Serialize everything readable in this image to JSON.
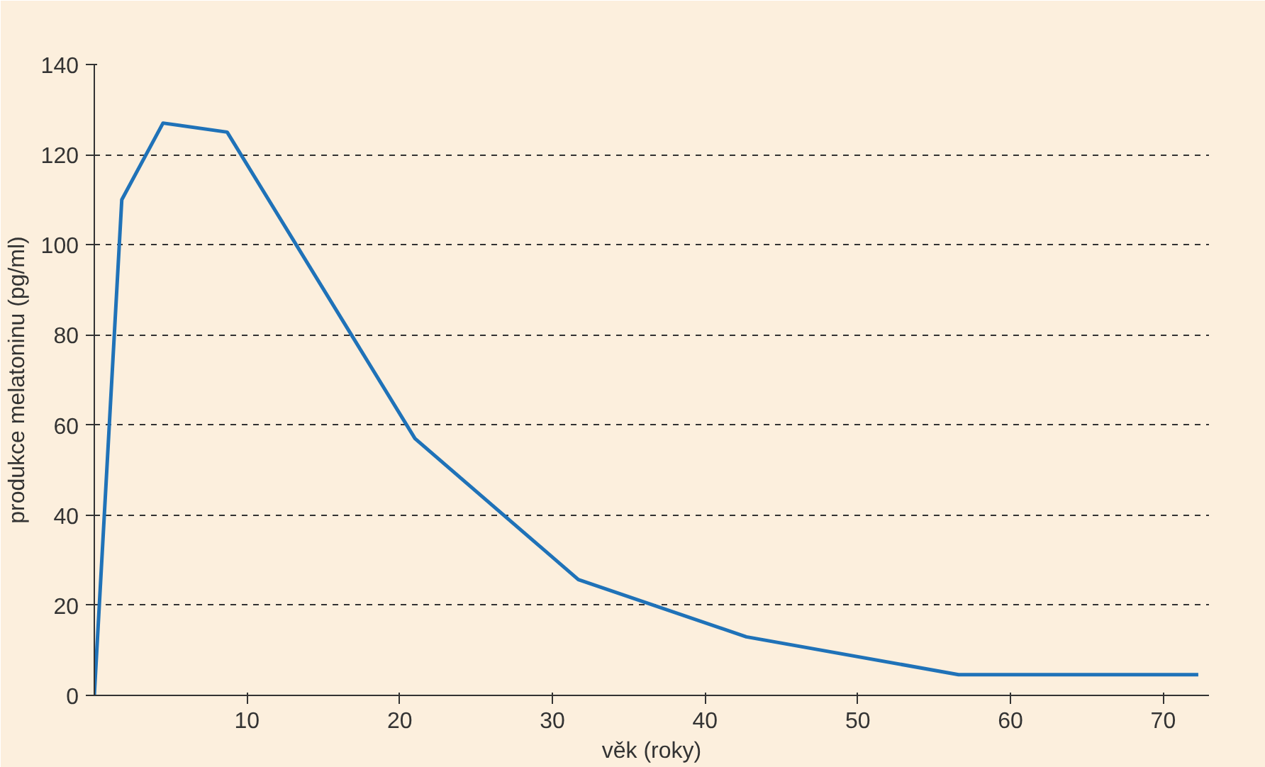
{
  "chart_data": {
    "type": "line",
    "xlabel": "věk (roky)",
    "ylabel": "produkce melatoninu (pg/ml)",
    "x": [
      0,
      1.8,
      4.5,
      8.7,
      21,
      31.7,
      42.7,
      56.6,
      72.3
    ],
    "series": [
      {
        "color": "#1f72b8",
        "values": [
          0,
          110,
          127,
          125,
          57,
          25.7,
          13,
          4.6,
          4.6
        ]
      }
    ],
    "xlim": [
      0,
      73
    ],
    "xticks": [
      10,
      20,
      30,
      40,
      50,
      60,
      70
    ],
    "ylim": [
      0,
      140
    ],
    "yticks": [
      0,
      20,
      40,
      60,
      80,
      100,
      120,
      140
    ],
    "grid": "y",
    "marker": "none",
    "line_style": "solid"
  }
}
